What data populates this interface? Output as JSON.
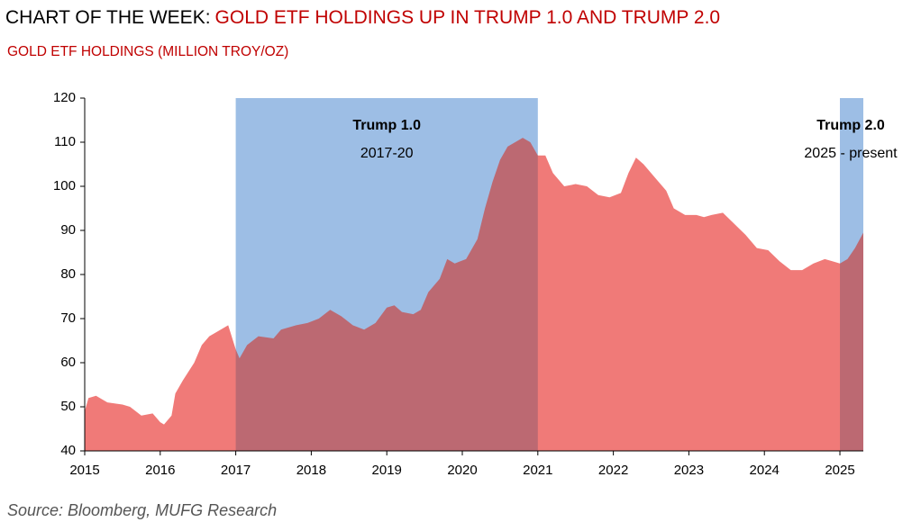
{
  "chart_data": {
    "type": "area",
    "title_prefix": "CHART OF THE WEEK:",
    "title": "GOLD ETF HOLDINGS UP IN TRUMP 1.0 AND TRUMP 2.0",
    "subtitle": "GOLD ETF HOLDINGS (MILLION TROY/OZ)",
    "source": "Source: Bloomberg, MUFG Research",
    "color": "#f07a78",
    "shade_color": "#c8dcf2",
    "x": [
      2015.0,
      2015.05,
      2015.15,
      2015.3,
      2015.5,
      2015.6,
      2015.75,
      2015.9,
      2016.0,
      2016.05,
      2016.15,
      2016.2,
      2016.3,
      2016.45,
      2016.55,
      2016.65,
      2016.75,
      2016.9,
      2017.0,
      2017.05,
      2017.15,
      2017.3,
      2017.5,
      2017.6,
      2017.8,
      2017.95,
      2018.1,
      2018.25,
      2018.4,
      2018.55,
      2018.7,
      2018.85,
      2019.0,
      2019.1,
      2019.2,
      2019.35,
      2019.45,
      2019.55,
      2019.7,
      2019.8,
      2019.9,
      2020.05,
      2020.2,
      2020.3,
      2020.4,
      2020.5,
      2020.6,
      2020.7,
      2020.8,
      2020.9,
      2021.0,
      2021.1,
      2021.2,
      2021.35,
      2021.5,
      2021.65,
      2021.8,
      2021.95,
      2022.1,
      2022.2,
      2022.3,
      2022.4,
      2022.55,
      2022.7,
      2022.8,
      2022.95,
      2023.1,
      2023.2,
      2023.3,
      2023.45,
      2023.6,
      2023.75,
      2023.9,
      2024.05,
      2024.2,
      2024.35,
      2024.5,
      2024.65,
      2024.8,
      2024.9,
      2025.0,
      2025.1,
      2025.2,
      2025.31
    ],
    "values": [
      49,
      52,
      52.5,
      51,
      50.5,
      50,
      48,
      48.5,
      46.5,
      46,
      48,
      53,
      56,
      60,
      64,
      66,
      67,
      68.5,
      63,
      61,
      64,
      66,
      65.5,
      67.5,
      68.5,
      69,
      70,
      72,
      70.5,
      68.5,
      67.5,
      69,
      72.5,
      73,
      71.5,
      71,
      72,
      76,
      79,
      83.5,
      82.5,
      83.5,
      88,
      95,
      101,
      106,
      109,
      110,
      111,
      110,
      107,
      107,
      103,
      100,
      100.5,
      100,
      98,
      97.5,
      98.5,
      103,
      106.5,
      105,
      102,
      99,
      95,
      93.5,
      93.5,
      93,
      93.5,
      94,
      91.5,
      89,
      86,
      85.5,
      83,
      81,
      81,
      82.5,
      83.5,
      83,
      82.5,
      83.5,
      86,
      89.5
    ],
    "xlim": [
      2015,
      2025.31
    ],
    "xticks": [
      2015,
      2016,
      2017,
      2018,
      2019,
      2020,
      2021,
      2022,
      2023,
      2024,
      2025
    ],
    "ylim": [
      40,
      120
    ],
    "yticks": [
      40,
      50,
      60,
      70,
      80,
      90,
      100,
      110,
      120
    ],
    "shaded": [
      {
        "label": "Trump 1.0",
        "sublabel": "2017-20",
        "start": 2017,
        "end": 2021
      },
      {
        "label": "Trump 2.0",
        "sublabel": "2025 - present",
        "start": 2025,
        "end": 2025.31
      }
    ]
  }
}
